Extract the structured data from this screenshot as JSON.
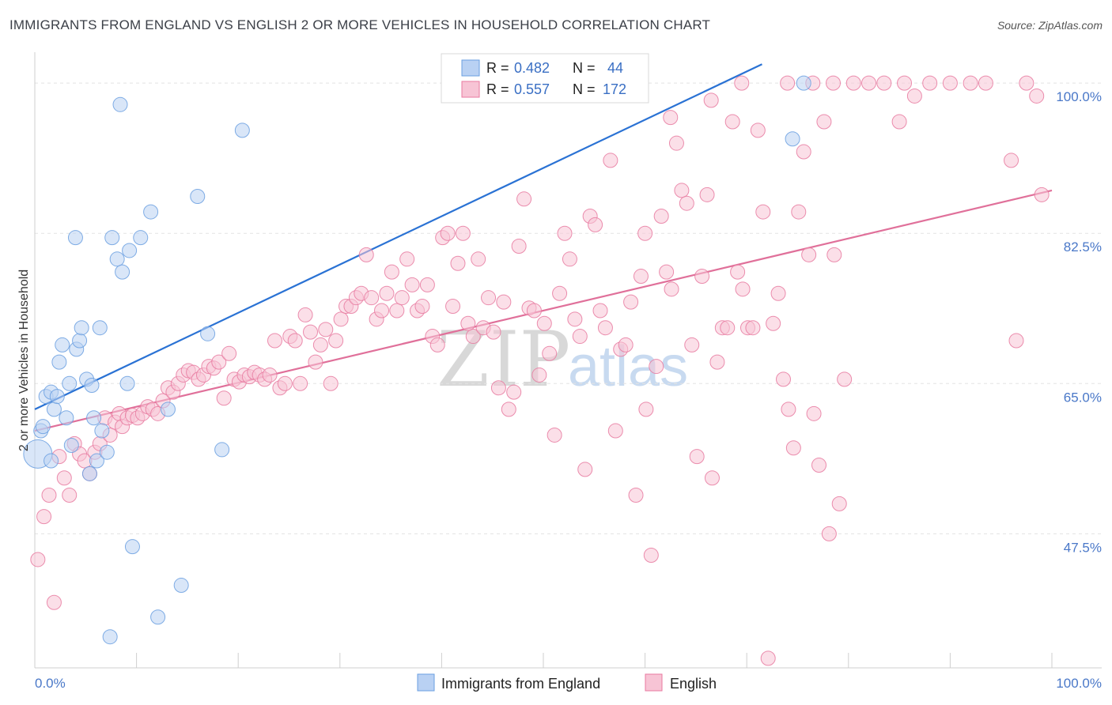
{
  "title": "IMMIGRANTS FROM ENGLAND VS ENGLISH 2 OR MORE VEHICLES IN HOUSEHOLD CORRELATION CHART",
  "source": "Source: ZipAtlas.com",
  "watermark": {
    "zip": "ZIP",
    "atlas": "atlas"
  },
  "colors": {
    "blue": "#6a9fe0",
    "blue_fill": "#b9d1f3",
    "pink": "#e87aa0",
    "pink_fill": "#f7c4d5",
    "blue_line": "#2a72d4",
    "pink_line": "#e0709a",
    "tick": "#4a78c8"
  },
  "chart_data": {
    "type": "scatter",
    "title": "IMMIGRANTS FROM ENGLAND VS ENGLISH 2 OR MORE VEHICLES IN HOUSEHOLD CORRELATION CHART",
    "xlabel": "",
    "ylabel": "2 or more Vehicles in Household",
    "xlim": [
      0,
      100
    ],
    "ylim": [
      34,
      102.5
    ],
    "x_tick_labels": [
      "0.0%",
      "100.0%"
    ],
    "y_ticks": [
      47.5,
      65.0,
      82.5,
      100.0
    ],
    "y_tick_labels": [
      "47.5%",
      "65.0%",
      "82.5%",
      "100.0%"
    ],
    "legend": [
      {
        "name": "Immigrants from England",
        "r_label": "R =",
        "r": "0.482",
        "n_label": "N =",
        "n": "44"
      },
      {
        "name": "English",
        "r_label": "R =",
        "r": "0.557",
        "n_label": "N =",
        "n": "172"
      }
    ],
    "series": [
      {
        "name": "Immigrants from England",
        "trend": {
          "x": [
            0,
            71.5
          ],
          "y": [
            62.0,
            102.2
          ]
        },
        "points": [
          [
            0.3,
            56.8
          ],
          [
            0.6,
            59.5
          ],
          [
            0.8,
            60.0
          ],
          [
            1.1,
            63.5
          ],
          [
            1.6,
            56.0
          ],
          [
            1.6,
            64.0
          ],
          [
            1.9,
            62.0
          ],
          [
            2.2,
            63.5
          ],
          [
            2.4,
            67.5
          ],
          [
            2.7,
            69.5
          ],
          [
            3.1,
            61.0
          ],
          [
            3.4,
            65.0
          ],
          [
            3.6,
            57.8
          ],
          [
            4.1,
            69.0
          ],
          [
            4.4,
            70.0
          ],
          [
            4.6,
            71.5
          ],
          [
            5.1,
            65.5
          ],
          [
            5.4,
            54.5
          ],
          [
            5.6,
            64.8
          ],
          [
            5.8,
            61.0
          ],
          [
            6.1,
            56.0
          ],
          [
            6.4,
            71.5
          ],
          [
            6.6,
            59.5
          ],
          [
            7.1,
            57.0
          ],
          [
            7.4,
            35.5
          ],
          [
            7.6,
            82.0
          ],
          [
            8.1,
            79.5
          ],
          [
            8.4,
            97.5
          ],
          [
            8.6,
            78.0
          ],
          [
            9.1,
            65.0
          ],
          [
            9.3,
            80.5
          ],
          [
            9.6,
            46.0
          ],
          [
            10.4,
            82.0
          ],
          [
            11.4,
            85.0
          ],
          [
            12.1,
            37.8
          ],
          [
            13.1,
            62.0
          ],
          [
            14.4,
            41.5
          ],
          [
            16.0,
            86.8
          ],
          [
            17.0,
            70.8
          ],
          [
            18.4,
            57.3
          ],
          [
            20.4,
            94.5
          ],
          [
            4.0,
            82.0
          ],
          [
            74.5,
            93.5
          ],
          [
            75.6,
            100.0
          ]
        ]
      },
      {
        "name": "English",
        "trend": {
          "x": [
            0,
            100
          ],
          "y": [
            59.5,
            87.5
          ]
        },
        "points": [
          [
            0.3,
            44.5
          ],
          [
            0.9,
            49.5
          ],
          [
            1.4,
            52.0
          ],
          [
            1.9,
            39.5
          ],
          [
            2.4,
            56.5
          ],
          [
            2.9,
            54.0
          ],
          [
            3.4,
            52.0
          ],
          [
            3.9,
            58.0
          ],
          [
            4.4,
            56.8
          ],
          [
            4.9,
            56.0
          ],
          [
            5.4,
            54.5
          ],
          [
            5.9,
            57.0
          ],
          [
            6.4,
            58.0
          ],
          [
            6.9,
            61.0
          ],
          [
            7.4,
            59.0
          ],
          [
            7.9,
            60.5
          ],
          [
            8.3,
            61.5
          ],
          [
            8.6,
            60.0
          ],
          [
            9.1,
            61.0
          ],
          [
            9.6,
            61.3
          ],
          [
            10.1,
            61.0
          ],
          [
            10.6,
            61.5
          ],
          [
            11.1,
            62.3
          ],
          [
            11.6,
            62.0
          ],
          [
            12.1,
            61.5
          ],
          [
            12.6,
            63.0
          ],
          [
            13.1,
            64.5
          ],
          [
            13.6,
            64.0
          ],
          [
            14.1,
            65.0
          ],
          [
            14.6,
            66.0
          ],
          [
            15.1,
            66.5
          ],
          [
            15.6,
            66.3
          ],
          [
            16.1,
            65.5
          ],
          [
            16.6,
            66.0
          ],
          [
            17.1,
            67.0
          ],
          [
            17.6,
            66.8
          ],
          [
            18.1,
            67.5
          ],
          [
            18.6,
            63.3
          ],
          [
            19.1,
            68.5
          ],
          [
            19.6,
            65.5
          ],
          [
            20.1,
            65.2
          ],
          [
            20.6,
            66.0
          ],
          [
            21.1,
            65.8
          ],
          [
            21.6,
            66.3
          ],
          [
            22.1,
            66.0
          ],
          [
            22.6,
            65.5
          ],
          [
            23.1,
            66.0
          ],
          [
            23.6,
            70.0
          ],
          [
            24.1,
            64.5
          ],
          [
            24.6,
            65.0
          ],
          [
            25.1,
            70.5
          ],
          [
            25.6,
            70.0
          ],
          [
            26.1,
            65.0
          ],
          [
            26.6,
            73.0
          ],
          [
            27.1,
            71.0
          ],
          [
            27.6,
            67.5
          ],
          [
            28.1,
            69.5
          ],
          [
            28.6,
            71.3
          ],
          [
            29.1,
            65.0
          ],
          [
            29.6,
            70.0
          ],
          [
            30.1,
            72.5
          ],
          [
            30.6,
            74.0
          ],
          [
            31.1,
            74.0
          ],
          [
            31.6,
            75.0
          ],
          [
            32.1,
            75.5
          ],
          [
            32.6,
            80.0
          ],
          [
            33.1,
            75.0
          ],
          [
            33.6,
            72.5
          ],
          [
            34.1,
            73.5
          ],
          [
            34.6,
            75.5
          ],
          [
            35.1,
            78.0
          ],
          [
            35.6,
            73.5
          ],
          [
            36.1,
            75.0
          ],
          [
            36.6,
            79.5
          ],
          [
            37.1,
            76.5
          ],
          [
            37.6,
            73.5
          ],
          [
            38.1,
            74.0
          ],
          [
            38.6,
            76.5
          ],
          [
            39.1,
            70.5
          ],
          [
            39.6,
            69.5
          ],
          [
            40.1,
            82.0
          ],
          [
            40.6,
            82.5
          ],
          [
            41.1,
            74.0
          ],
          [
            41.6,
            79.0
          ],
          [
            42.1,
            82.5
          ],
          [
            42.6,
            72.0
          ],
          [
            43.1,
            70.5
          ],
          [
            43.6,
            79.5
          ],
          [
            44.1,
            71.5
          ],
          [
            44.6,
            75.0
          ],
          [
            45.1,
            71.0
          ],
          [
            45.6,
            64.5
          ],
          [
            46.1,
            74.5
          ],
          [
            46.6,
            62.0
          ],
          [
            47.1,
            64.0
          ],
          [
            47.6,
            81.0
          ],
          [
            48.1,
            86.5
          ],
          [
            48.6,
            73.8
          ],
          [
            49.1,
            73.5
          ],
          [
            49.6,
            66.0
          ],
          [
            50.1,
            72.0
          ],
          [
            50.6,
            68.5
          ],
          [
            51.1,
            59.0
          ],
          [
            51.6,
            75.5
          ],
          [
            52.1,
            82.5
          ],
          [
            52.6,
            79.5
          ],
          [
            53.1,
            72.5
          ],
          [
            53.6,
            70.5
          ],
          [
            54.1,
            55.0
          ],
          [
            54.6,
            84.5
          ],
          [
            55.1,
            83.5
          ],
          [
            55.6,
            73.5
          ],
          [
            56.1,
            71.5
          ],
          [
            56.6,
            91.0
          ],
          [
            57.1,
            59.5
          ],
          [
            57.6,
            69.0
          ],
          [
            58.1,
            69.5
          ],
          [
            58.6,
            74.5
          ],
          [
            59.1,
            52.0
          ],
          [
            59.6,
            77.5
          ],
          [
            60.1,
            62.0
          ],
          [
            60.6,
            45.0
          ],
          [
            61.1,
            67.0
          ],
          [
            61.6,
            84.5
          ],
          [
            62.1,
            78.0
          ],
          [
            62.6,
            76.0
          ],
          [
            63.1,
            93.0
          ],
          [
            63.6,
            87.5
          ],
          [
            64.1,
            86.0
          ],
          [
            64.6,
            69.5
          ],
          [
            65.1,
            56.5
          ],
          [
            65.6,
            77.5
          ],
          [
            66.1,
            87.0
          ],
          [
            66.6,
            54.0
          ],
          [
            67.1,
            67.5
          ],
          [
            67.6,
            71.5
          ],
          [
            68.1,
            71.5
          ],
          [
            68.6,
            95.5
          ],
          [
            69.1,
            78.0
          ],
          [
            69.6,
            76.0
          ],
          [
            70.1,
            71.5
          ],
          [
            70.6,
            71.5
          ],
          [
            71.1,
            94.5
          ],
          [
            71.6,
            85.0
          ],
          [
            72.1,
            33.0
          ],
          [
            72.6,
            72.0
          ],
          [
            73.1,
            75.5
          ],
          [
            73.6,
            65.5
          ],
          [
            74.1,
            62.0
          ],
          [
            74.6,
            57.5
          ],
          [
            75.1,
            85.0
          ],
          [
            75.6,
            92.0
          ],
          [
            76.1,
            80.0
          ],
          [
            76.6,
            61.5
          ],
          [
            77.1,
            55.5
          ],
          [
            77.6,
            95.5
          ],
          [
            78.1,
            47.5
          ],
          [
            78.6,
            80.0
          ],
          [
            79.1,
            51.0
          ],
          [
            79.6,
            65.5
          ],
          [
            69.5,
            100.0
          ],
          [
            74.0,
            100.0
          ],
          [
            76.5,
            100.0
          ],
          [
            78.5,
            100.0
          ],
          [
            80.5,
            100.0
          ],
          [
            82.0,
            100.0
          ],
          [
            83.5,
            100.0
          ],
          [
            85.5,
            100.0
          ],
          [
            86.5,
            98.5
          ],
          [
            88.0,
            100.0
          ],
          [
            90.0,
            100.0
          ],
          [
            92.0,
            100.0
          ],
          [
            93.5,
            100.0
          ],
          [
            96.0,
            91.0
          ],
          [
            96.5,
            70.0
          ],
          [
            97.5,
            100.0
          ],
          [
            98.5,
            98.5
          ],
          [
            99.0,
            87.0
          ],
          [
            62.5,
            96.0
          ],
          [
            66.5,
            98.0
          ],
          [
            85.0,
            95.5
          ],
          [
            60.0,
            82.5
          ]
        ]
      }
    ]
  }
}
